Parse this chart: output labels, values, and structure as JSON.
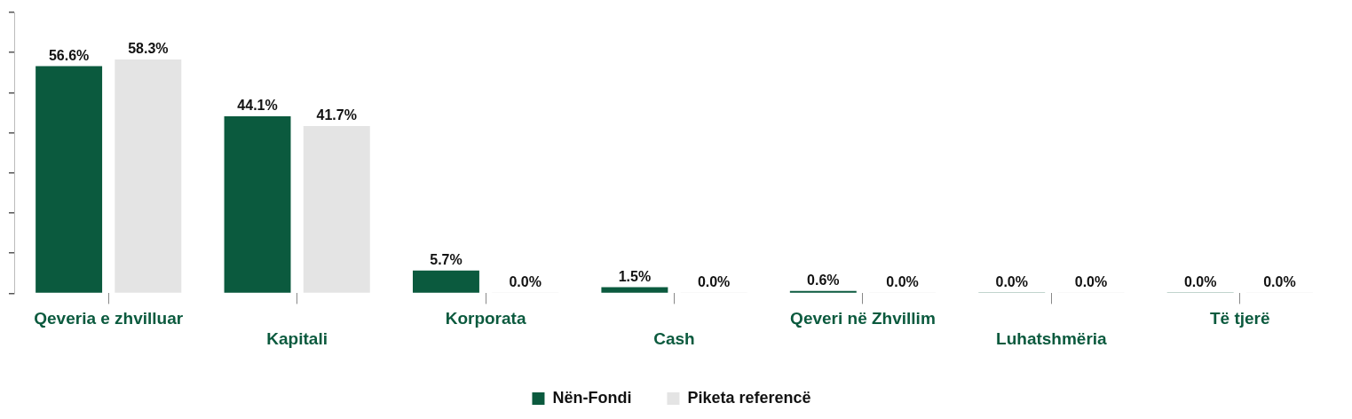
{
  "chart_data": {
    "type": "bar",
    "categories": [
      "Qeveria e zhvilluar",
      "Kapitali",
      "Korporata",
      "Cash",
      "Qeveri në Zhvillim",
      "Luhatshmëria",
      "Të tjerë"
    ],
    "series": [
      {
        "name": "Nën-Fondi",
        "color": "#0b5a3e",
        "values": [
          56.6,
          44.1,
          5.7,
          1.5,
          0.6,
          0.0,
          0.0
        ],
        "value_labels": [
          "56.6%",
          "44.1%",
          "5.7%",
          "1.5%",
          "0.6%",
          "0.0%",
          "0.0%"
        ]
      },
      {
        "name": "Piketa referencë",
        "color": "#e4e4e4",
        "values": [
          58.3,
          41.7,
          0.0,
          0.0,
          0.0,
          0.0,
          0.0
        ],
        "value_labels": [
          "58.3%",
          "41.7%",
          "0.0%",
          "0.0%",
          "0.0%",
          "0.0%",
          "0.0%"
        ]
      }
    ],
    "ylim": [
      0,
      70
    ],
    "yticks": [
      {
        "value": 0,
        "label": null
      },
      {
        "value": 10,
        "label": null
      },
      {
        "value": 20,
        "label": null
      },
      {
        "value": 30,
        "label": null
      },
      {
        "value": 40,
        "label": null
      },
      {
        "value": 50,
        "label": null
      },
      {
        "value": 60,
        "label": null
      },
      {
        "value": 70,
        "label": null
      }
    ],
    "tick_labels": "x",
    "grid": false,
    "legend": "bottom"
  }
}
